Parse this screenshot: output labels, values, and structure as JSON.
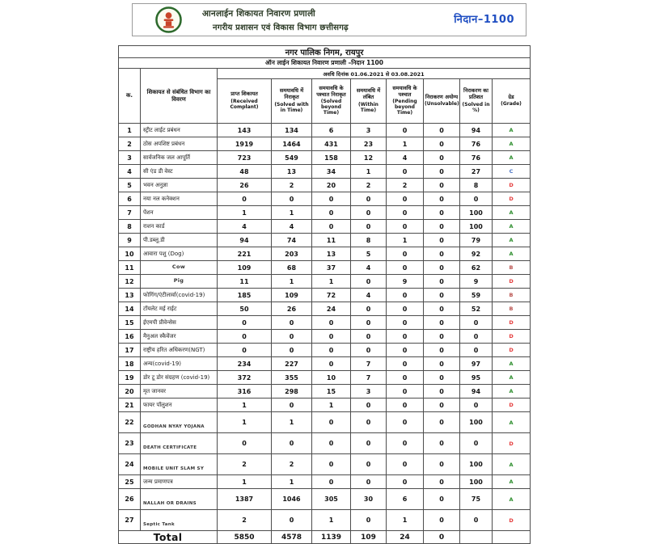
{
  "header": {
    "logo": "chhattisgarh-state-emblem",
    "title_line1": "आनलाईन शिकायत निवारण प्रणाली",
    "title_line2": "नगरीय प्रशासन एवं विकास विभाग छत्तीसगढ़",
    "badge": "निदान–1100"
  },
  "report": {
    "org_title": "नगर पालिक निगम, रायपुर",
    "subtitle": "ऑन लाईन शिकायत निवारण प्रणाली –निदान 1100",
    "period": "अवधि दिनांक 01.06.2021 से 03.08.2021"
  },
  "table": {
    "columns": [
      {
        "hi": "क.",
        "en": ""
      },
      {
        "hi": "शिकायत से संबंधित विभाग का विवरण",
        "en": ""
      },
      {
        "hi": "प्राप्त शिकायत",
        "en": "(Received Complant)"
      },
      {
        "hi": "समयावधि में निराकृत",
        "en": "(Solved with in Time)"
      },
      {
        "hi": "समयावधि के पश्चात निराकृत",
        "en": "(Solved beyond Time)"
      },
      {
        "hi": "समयावधि में लंबित",
        "en": "(Within Time)"
      },
      {
        "hi": "समयावधि के पश्चात",
        "en": "(Pending beyond Time)"
      },
      {
        "hi": "निराकरण अयोग्य",
        "en": "(Unsolvable)"
      },
      {
        "hi": "निराकरण का प्रतिशत",
        "en": "(Solved in %)"
      },
      {
        "hi": "ग्रेड",
        "en": "(Grade)"
      }
    ],
    "rows": [
      {
        "no": "1",
        "dept": "स्ट्रीट लाईट प्रबंधन",
        "vals": [
          "143",
          "134",
          "6",
          "3",
          "0",
          "0",
          "94"
        ],
        "grade": "A"
      },
      {
        "no": "2",
        "dept": "ठोस अपशिष्ट प्रबंधन",
        "vals": [
          "1919",
          "1464",
          "431",
          "23",
          "1",
          "0",
          "76"
        ],
        "grade": "A"
      },
      {
        "no": "3",
        "dept": "सार्वजनिक जल आपूर्ति",
        "vals": [
          "723",
          "549",
          "158",
          "12",
          "4",
          "0",
          "76"
        ],
        "grade": "A"
      },
      {
        "no": "4",
        "dept": "सी एंड डी वेस्ट",
        "vals": [
          "48",
          "13",
          "34",
          "1",
          "0",
          "0",
          "27"
        ],
        "grade": "C"
      },
      {
        "no": "5",
        "dept": "भवन अनुज्ञा",
        "vals": [
          "26",
          "2",
          "20",
          "2",
          "2",
          "0",
          "8"
        ],
        "grade": "D"
      },
      {
        "no": "6",
        "dept": "नया नल कनेक्शन",
        "vals": [
          "0",
          "0",
          "0",
          "0",
          "0",
          "0",
          "0"
        ],
        "grade": "D"
      },
      {
        "no": "7",
        "dept": "पेंशन",
        "vals": [
          "1",
          "1",
          "0",
          "0",
          "0",
          "0",
          "100"
        ],
        "grade": "A"
      },
      {
        "no": "8",
        "dept": "राशन कार्ड",
        "vals": [
          "4",
          "4",
          "0",
          "0",
          "0",
          "0",
          "100"
        ],
        "grade": "A"
      },
      {
        "no": "9",
        "dept": "पी.डब्लू.डी",
        "vals": [
          "94",
          "74",
          "11",
          "8",
          "1",
          "0",
          "79"
        ],
        "grade": "A"
      },
      {
        "no": "10",
        "dept": "आवारा पशु (Dog)",
        "vals": [
          "221",
          "203",
          "13",
          "5",
          "0",
          "0",
          "92"
        ],
        "grade": "A"
      },
      {
        "no": "11",
        "dept": "Cow",
        "vals": [
          "109",
          "68",
          "37",
          "4",
          "0",
          "0",
          "62"
        ],
        "grade": "B"
      },
      {
        "no": "12",
        "dept": "Pig",
        "vals": [
          "11",
          "1",
          "1",
          "0",
          "9",
          "0",
          "9"
        ],
        "grade": "D"
      },
      {
        "no": "13",
        "dept": "फोगिंग/एंटीलार्वा(covid-19)",
        "vals": [
          "185",
          "109",
          "72",
          "4",
          "0",
          "0",
          "59"
        ],
        "grade": "B"
      },
      {
        "no": "14",
        "dept": "टॉयलेट मई राईट",
        "vals": [
          "50",
          "26",
          "24",
          "0",
          "0",
          "0",
          "52"
        ],
        "grade": "B"
      },
      {
        "no": "15",
        "dept": "ईएमपी प्रीवेन्सेस",
        "vals": [
          "0",
          "0",
          "0",
          "0",
          "0",
          "0",
          "0"
        ],
        "grade": "D"
      },
      {
        "no": "16",
        "dept": "मैनुअल स्कैवेंजर",
        "vals": [
          "0",
          "0",
          "0",
          "0",
          "0",
          "0",
          "0"
        ],
        "grade": "D"
      },
      {
        "no": "17",
        "dept": "राष्ट्रीय हरित अधिकरण(NGT)",
        "vals": [
          "0",
          "0",
          "0",
          "0",
          "0",
          "0",
          "0"
        ],
        "grade": "D"
      },
      {
        "no": "18",
        "dept": "अन्य(covid-19)",
        "vals": [
          "234",
          "227",
          "0",
          "7",
          "0",
          "0",
          "97"
        ],
        "grade": "A"
      },
      {
        "no": "19",
        "dept": "डोर टू डोर संग्रहण (covid-19)",
        "vals": [
          "372",
          "355",
          "10",
          "7",
          "0",
          "0",
          "95"
        ],
        "grade": "A"
      },
      {
        "no": "20",
        "dept": "मृत जानवर",
        "vals": [
          "316",
          "298",
          "15",
          "3",
          "0",
          "0",
          "94"
        ],
        "grade": "A"
      },
      {
        "no": "21",
        "dept": "फायर पॉलुशन",
        "vals": [
          "1",
          "0",
          "1",
          "0",
          "0",
          "0",
          "0"
        ],
        "grade": "D"
      },
      {
        "no": "22",
        "dept": "GODHAN NYAY YOJANA",
        "vals": [
          "1",
          "1",
          "0",
          "0",
          "0",
          "0",
          "100"
        ],
        "grade": "A"
      },
      {
        "no": "23",
        "dept": "DEATH CERTIFICATE",
        "vals": [
          "0",
          "0",
          "0",
          "0",
          "0",
          "0",
          "0"
        ],
        "grade": "D"
      },
      {
        "no": "24",
        "dept": "MOBILE UNIT SLAM SY",
        "vals": [
          "2",
          "2",
          "0",
          "0",
          "0",
          "0",
          "100"
        ],
        "grade": "A"
      },
      {
        "no": "25",
        "dept": "जन्म प्रमाणपत्र",
        "vals": [
          "1",
          "1",
          "0",
          "0",
          "0",
          "0",
          "100"
        ],
        "grade": "A"
      },
      {
        "no": "26",
        "dept": "NALLAH OR DRAINS",
        "vals": [
          "1387",
          "1046",
          "305",
          "30",
          "6",
          "0",
          "75"
        ],
        "grade": "A"
      },
      {
        "no": "27",
        "dept": "Septic Tank",
        "vals": [
          "2",
          "0",
          "1",
          "0",
          "1",
          "0",
          "0"
        ],
        "grade": "D"
      }
    ],
    "total": {
      "label": "Total",
      "values": [
        "5850",
        "4578",
        "1139",
        "109",
        "24",
        "0"
      ],
      "percent": "",
      "grade": ""
    }
  },
  "colors": {
    "badge": "#1f4ec2",
    "grades": {
      "A": "#2f8f2f",
      "B": "#b9524e",
      "C": "#4a74c4",
      "D": "#e43b3b"
    }
  }
}
